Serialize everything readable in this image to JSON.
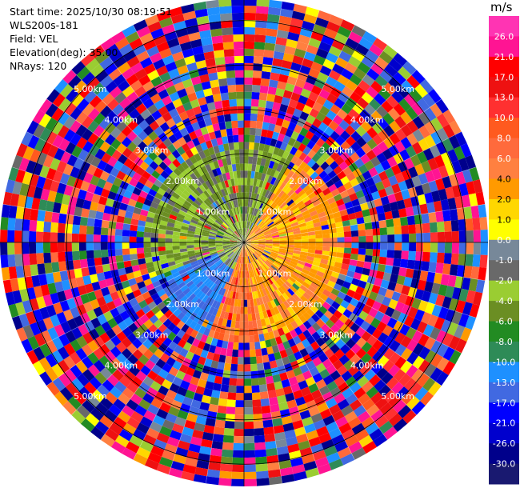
{
  "header": {
    "start_time": "Start time: 2025/10/30 08:19:51",
    "instrument": "WLS200s-181",
    "field": "Field: VEL",
    "elevation": "Elevation(deg): 35.00",
    "nrays": "NRays: 120"
  },
  "colorbar": {
    "unit": "m/s",
    "ticks": [
      "26.0",
      "21.0",
      "17.0",
      "13.0",
      "10.0",
      "8.0",
      "6.0",
      "4.0",
      "2.0",
      "1.0",
      "0.0",
      "-1.0",
      "-2.0",
      "-4.0",
      "-6.0",
      "-8.0",
      "-10.0",
      "-13.0",
      "-17.0",
      "-21.0",
      "-26.0",
      "-30.0"
    ],
    "colors_top_to_bottom": [
      "#ff34b3",
      "#ff1493",
      "#ff0000",
      "#ee1111",
      "#ff3030",
      "#ff5a1f",
      "#ff6a3c",
      "#ff8040",
      "#ff9a00",
      "#ffd700",
      "#ffff00",
      "#778899",
      "#696969",
      "#9acd32",
      "#6b8e23",
      "#228b22",
      "#2e8b57",
      "#1e90ff",
      "#4169e1",
      "#0000ff",
      "#0000cd",
      "#00008b",
      "#191970"
    ]
  },
  "chart_data": {
    "type": "heatmap",
    "projection": "polar (PPI)",
    "field": "VEL",
    "units": "m/s",
    "nrays": 120,
    "range_ring_labels_km": [
      "1.00km",
      "2.00km",
      "3.00km",
      "4.00km",
      "5.00km"
    ],
    "range_rings_km": [
      1,
      2,
      3,
      4,
      5
    ],
    "max_range_km": 5.5,
    "color_scale": {
      "bounds": [
        -30,
        -26,
        -21,
        -17,
        -13,
        -10,
        -8,
        -6,
        -4,
        -2,
        -1,
        0,
        1,
        2,
        4,
        6,
        8,
        10,
        13,
        17,
        21,
        26
      ],
      "min": -30,
      "max": 26
    },
    "near_field_pattern": [
      {
        "sector": "east (0-2 km)",
        "approx_vel_ms": [
          1,
          4
        ],
        "color": "yellow/orange"
      },
      {
        "sector": "west (0-2 km)",
        "approx_vel_ms": [
          -6,
          -2
        ],
        "color": "green"
      },
      {
        "sector": "south-west (1-2 km)",
        "approx_vel_ms": [
          -17,
          -10
        ],
        "color": "blue"
      }
    ],
    "far_field": "noisy, values span full scale beyond ~2 km"
  }
}
